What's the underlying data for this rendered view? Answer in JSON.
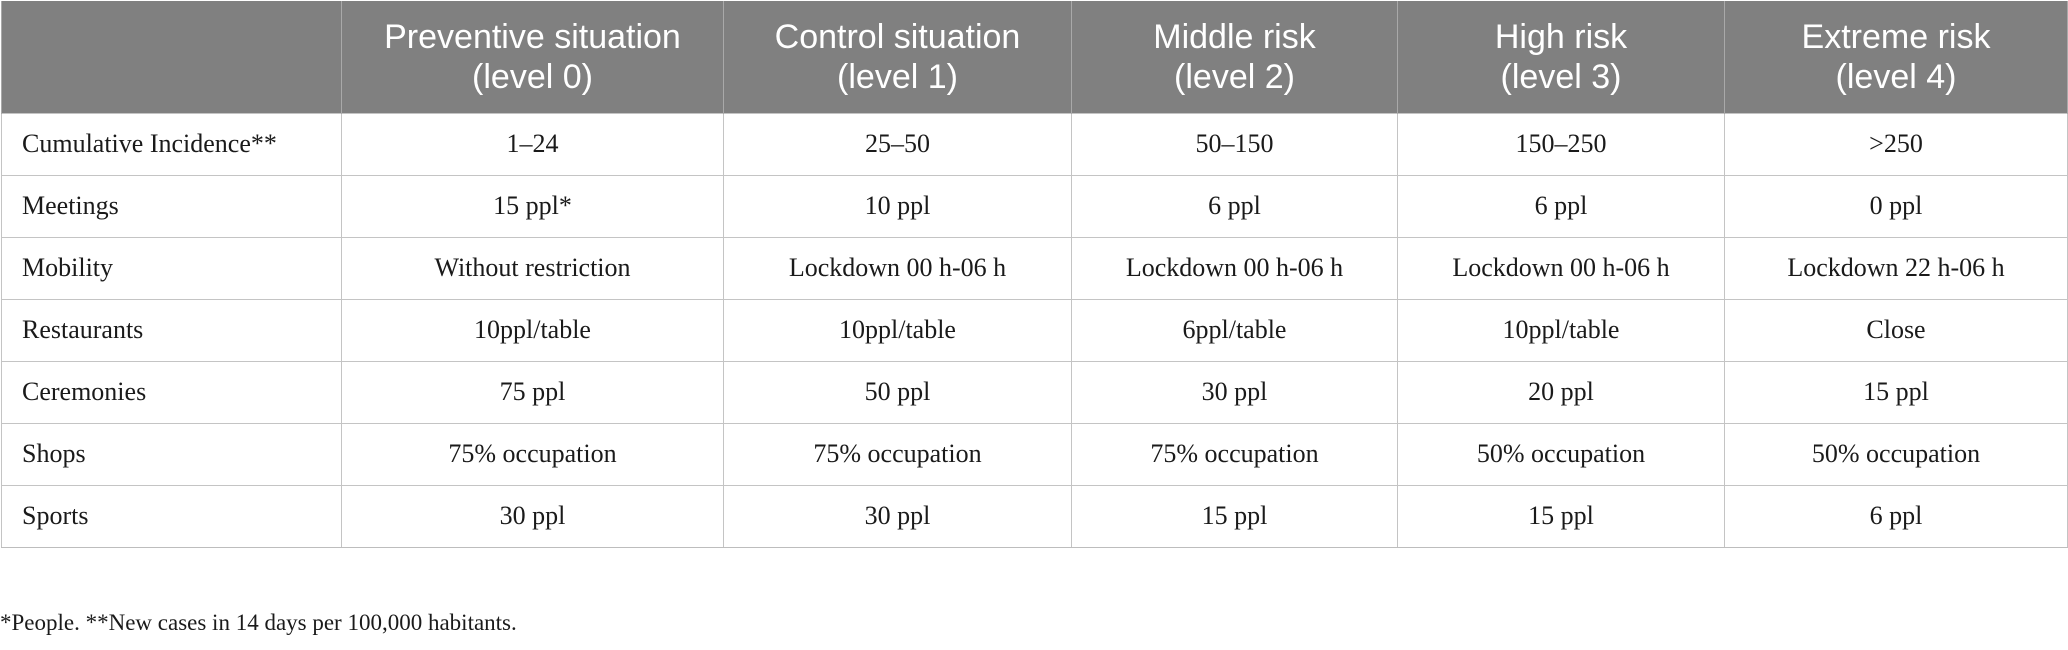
{
  "table": {
    "header": {
      "corner": "",
      "columns": [
        {
          "line1": "Preventive situation",
          "line2": "(level 0)"
        },
        {
          "line1": "Control situation",
          "line2": "(level 1)"
        },
        {
          "line1": "Middle risk",
          "line2": "(level 2)"
        },
        {
          "line1": "High risk",
          "line2": "(level 3)"
        },
        {
          "line1": "Extreme risk",
          "line2": "(level 4)"
        }
      ]
    },
    "rows": [
      {
        "label": "Cumulative Incidence**",
        "cells": [
          "1–24",
          "25–50",
          "50–150",
          "150–250",
          ">250"
        ]
      },
      {
        "label": "Meetings",
        "cells": [
          "15 ppl*",
          "10 ppl",
          "6 ppl",
          "6 ppl",
          "0 ppl"
        ]
      },
      {
        "label": "Mobility",
        "cells": [
          "Without restriction",
          "Lockdown 00 h-06 h",
          "Lockdown 00 h-06 h",
          "Lockdown 00 h-06 h",
          "Lockdown 22 h-06 h"
        ]
      },
      {
        "label": "Restaurants",
        "cells": [
          "10ppl/table",
          "10ppl/table",
          "6ppl/table",
          "10ppl/table",
          "Close"
        ]
      },
      {
        "label": "Ceremonies",
        "cells": [
          "75 ppl",
          "50 ppl",
          "30 ppl",
          "20 ppl",
          "15 ppl"
        ]
      },
      {
        "label": "Shops",
        "cells": [
          "75% occupation",
          "75% occupation",
          "75% occupation",
          "50% occupation",
          "50% occupation"
        ]
      },
      {
        "label": "Sports",
        "cells": [
          "30 ppl",
          "30 ppl",
          "15 ppl",
          "15 ppl",
          "6 ppl"
        ]
      }
    ]
  },
  "footnote": "*People. **New cases in 14 days per 100,000 habitants.",
  "colors": {
    "header_bg": "#808080",
    "header_text": "#ffffff",
    "grid": "#c4c4c4"
  }
}
